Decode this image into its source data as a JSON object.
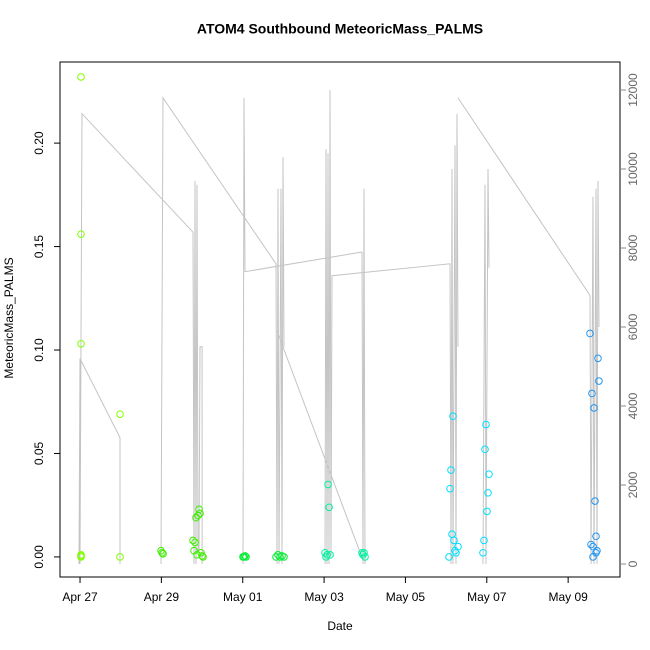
{
  "chart_data": {
    "type": "scatter",
    "title": "ATOM4 Southbound MeteoricMass_PALMS",
    "xlabel": "Date",
    "ylabel": "MeteoricMass_PALMS",
    "xlim": [
      "04-26 12:11",
      "05-10 06:36"
    ],
    "xticks": [
      {
        "value": "04-27 00:00",
        "label": "Apr 27"
      },
      {
        "value": "04-29 00:00",
        "label": "Apr 29"
      },
      {
        "value": "05-01 00:00",
        "label": "May 01"
      },
      {
        "value": "05-03 00:00",
        "label": "May 03"
      },
      {
        "value": "05-05 00:00",
        "label": "May 05"
      },
      {
        "value": "05-07 00:00",
        "label": "May 07"
      },
      {
        "value": "05-09 00:00",
        "label": "May 09"
      }
    ],
    "ylim": [
      -0.0097,
      0.2392
    ],
    "yticks": [
      {
        "value": 0,
        "label": "0.00"
      },
      0.05,
      {
        "value": 0.1,
        "label": "0.10"
      },
      0.15,
      {
        "value": 0.2,
        "label": "0.20"
      }
    ],
    "y2lim": [
      -329,
      12709
    ],
    "y2ticks": [
      0,
      2000,
      4000,
      6000,
      8000,
      10000,
      12000
    ],
    "series": [
      {
        "type": "line",
        "axis": "y2",
        "color": "#c4c4c4",
        "x": [
          "04-26 23:25",
          "04-27 00:00",
          "04-27 23:36",
          "04-27 23:36",
          "04-27 23:36",
          "04-27 00:00",
          "04-27 01:11",
          "04-29 18:40",
          "04-29 19:16",
          "04-29 19:51",
          "04-29 20:26",
          "04-29 21:02",
          "04-29 21:37",
          "04-29 22:13",
          "04-29 22:48",
          "04-30 00:00",
          "04-30 00:00",
          "04-30 00:00",
          "04-28 23:48",
          "04-29 00:58",
          "05-01 19:38",
          "05-01 20:13",
          "05-01 20:49",
          "05-01 21:24",
          "05-01 22:35",
          "05-01 23:10",
          "05-01 23:45",
          "05-02 00:21",
          "05-02 00:21",
          "05-01 00:10",
          "05-01 00:45",
          "05-01 01:20",
          "05-03 22:23",
          "05-03 22:58",
          "05-03 23:33",
          "05-04 00:09",
          "05-04 00:09",
          "05-01 20:13",
          "05-03 22:58",
          "05-03 22:58",
          "05-03 00:34",
          "05-03 01:09",
          "05-03 01:45",
          "05-03 02:20",
          "05-03 02:55",
          "05-03 03:31",
          "05-03 04:06",
          "05-03 04:41",
          "05-06 02:18",
          "05-06 02:53",
          "05-06 03:29",
          "05-06 04:04",
          "05-06 05:15",
          "05-06 05:50",
          "05-06 06:26",
          "05-06 07:01",
          "05-06 07:01",
          "05-06 07:01",
          "05-09 12:54",
          "05-09 13:29",
          "05-09 14:40",
          "05-09 15:15",
          "05-09 16:26",
          "05-09 17:01",
          "05-09 17:37",
          "05-09 18:12",
          "05-09 18:12",
          "05-06 21:46",
          "05-06 22:56",
          "05-06 23:32",
          "05-07 00:43",
          "05-07 01:18"
        ],
        "values": [
          0,
          5200,
          3200,
          0,
          null,
          0,
          11400,
          8400,
          0,
          9700,
          0,
          9600,
          300,
          300,
          5500,
          5500,
          0,
          null,
          0,
          11800,
          7600,
          0,
          9500,
          0,
          9500,
          0,
          10300,
          5500,
          null,
          0,
          11800,
          7400,
          7900,
          0,
          9500,
          0,
          null,
          5900,
          100,
          null,
          0,
          10500,
          0,
          10400,
          0,
          12000,
          200,
          7300,
          7600,
          0,
          10000,
          0,
          10600,
          0,
          11400,
          5500,
          null,
          11800,
          6800,
          0,
          9300,
          0,
          9500,
          0,
          9700,
          6000,
          null,
          0,
          9600,
          0,
          10000,
          7500
        ]
      },
      {
        "color": "#7fff00",
        "x": [
          "04-27 00:35",
          "04-27 00:35",
          "04-27 00:35",
          "04-27 00:35",
          "04-27 00:35",
          "04-27 00:35",
          "04-27 23:36",
          "04-27 23:36"
        ],
        "values": [
          0.232,
          0.156,
          0.103,
          0.001,
          0.0005,
          0,
          0.069,
          0
        ]
      },
      {
        "color": "#40ee00",
        "x": [
          "04-28 23:48",
          "04-29 00:23",
          "04-29 00:58",
          "04-29 18:40",
          "04-29 19:16",
          "04-29 19:51",
          "04-29 20:26",
          "04-29 21:02",
          "04-29 21:37",
          "04-29 22:13",
          "04-29 22:48",
          "04-29 23:23",
          "04-30 00:00",
          "04-30 00:34"
        ],
        "values": [
          0.003,
          0.002,
          0.0015,
          0.008,
          0.003,
          0.007,
          0.019,
          0.001,
          0.02,
          0.023,
          0.021,
          0.002,
          0.0005,
          0
        ]
      },
      {
        "color": "#00ee30",
        "x": [
          "05-01 00:10",
          "05-01 00:45",
          "05-01 01:20",
          "05-01 01:56",
          "05-01 19:38",
          "05-01 20:49",
          "05-01 21:59",
          "05-01 23:10",
          "05-02 00:21"
        ],
        "values": [
          0,
          0,
          0.0005,
          0,
          0,
          0.001,
          0,
          0.0005,
          0
        ]
      },
      {
        "color": "#00f0a0",
        "x": [
          "05-03 00:34",
          "05-03 01:09",
          "05-03 01:45",
          "05-03 02:20",
          "05-03 02:55",
          "05-03 03:31",
          "05-03 22:23",
          "05-03 22:58",
          "05-03 23:33",
          "05-04 00:09"
        ],
        "values": [
          0.002,
          0,
          0.001,
          0.035,
          0.024,
          0.001,
          0.002,
          0.001,
          0.002,
          0
        ]
      },
      {
        "color": "#00e0ff",
        "x": [
          "05-06 01:43",
          "05-06 02:18",
          "05-06 02:53",
          "05-06 03:29",
          "05-06 04:04",
          "05-06 04:40",
          "05-06 05:15",
          "05-06 05:50",
          "05-06 07:01",
          "05-06 21:46",
          "05-06 22:21",
          "05-06 22:56",
          "05-06 23:32",
          "05-07 00:07",
          "05-07 00:43",
          "05-07 01:18"
        ],
        "values": [
          0,
          0.033,
          0.042,
          0.011,
          0.068,
          0.008,
          0.003,
          0.002,
          0.005,
          0.002,
          0.008,
          0.052,
          0.064,
          0.022,
          0.031,
          0.04
        ]
      },
      {
        "color": "#2196f3",
        "x": [
          "05-09 12:54",
          "05-09 13:29",
          "05-09 14:04",
          "05-09 14:40",
          "05-09 15:15",
          "05-09 15:50",
          "05-09 16:26",
          "05-09 17:01",
          "05-09 17:37",
          "05-09 18:12",
          "05-09 14:40",
          "05-09 16:26"
        ],
        "values": [
          0.108,
          0.006,
          0.079,
          0.005,
          0.072,
          0.027,
          0.01,
          0.003,
          0.096,
          0.085,
          0,
          0.002
        ]
      }
    ]
  }
}
